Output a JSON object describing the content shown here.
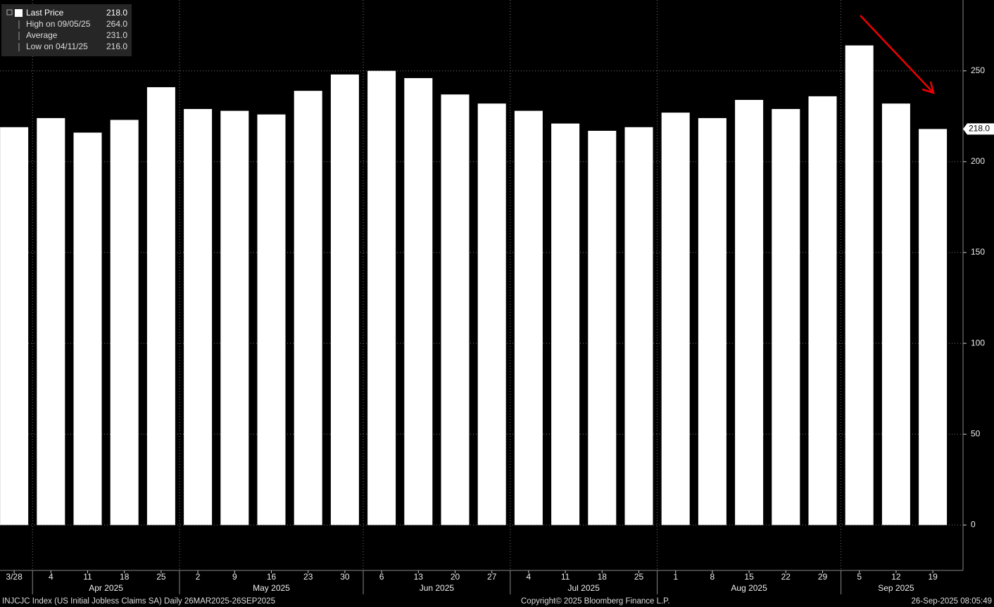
{
  "chart_data": {
    "type": "bar",
    "categories": [
      "3/28",
      "4",
      "11",
      "18",
      "25",
      "2",
      "9",
      "16",
      "23",
      "30",
      "6",
      "13",
      "20",
      "27",
      "4",
      "11",
      "18",
      "25",
      "1",
      "8",
      "15",
      "22",
      "29",
      "5",
      "12",
      "19"
    ],
    "months": [
      "Apr 2025",
      "May 2025",
      "Jun 2025",
      "Jul 2025",
      "Aug 2025",
      "Sep 2025"
    ],
    "values": [
      219,
      224,
      216,
      223,
      241,
      229,
      228,
      226,
      239,
      248,
      250,
      246,
      237,
      232,
      228,
      221,
      217,
      219,
      227,
      224,
      234,
      229,
      236,
      264,
      232,
      218
    ],
    "color": "#ffffff",
    "ylim": [
      -25,
      289
    ],
    "yticks": [
      0,
      50,
      100,
      150,
      200,
      250
    ],
    "grid": true,
    "legend": [
      {
        "label": "Last Price",
        "value": "218.0"
      },
      {
        "label": "High on 09/05/25",
        "value": "264.0"
      },
      {
        "label": "Average",
        "value": "231.0"
      },
      {
        "label": "Low on 04/11/25",
        "value": "216.0"
      }
    ]
  },
  "footer": {
    "left": "INJCJC Index (US Initial Jobless Claims SA)  Daily 26MAR2025-26SEP2025",
    "center": "Copyright© 2025 Bloomberg Finance L.P.",
    "right": "26-Sep-2025 08:05:49"
  }
}
